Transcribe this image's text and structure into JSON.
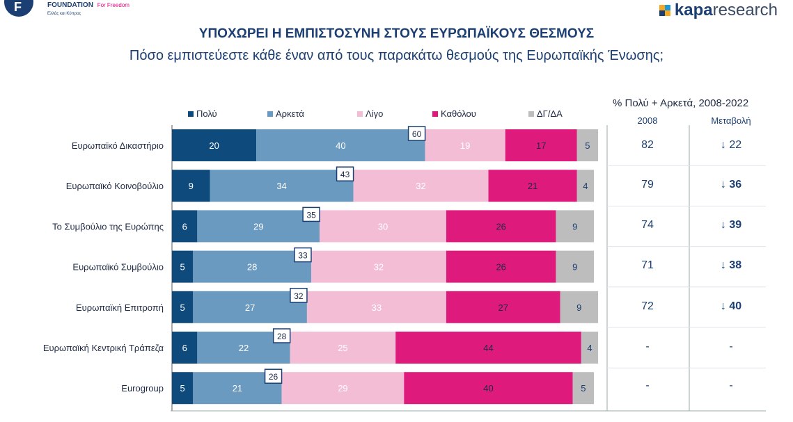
{
  "branding": {
    "left_logo_name": "FOUNDATION",
    "left_logo_tagline": "For Freedom",
    "left_logo_region": "Ελλάς και Κύπρος",
    "right_logo_bold": "kapa",
    "right_logo_rest": "research"
  },
  "header": {
    "title": "ΥΠΟΧΩΡΕΙ Η ΕΜΠΙΣΤΟΣΥΝΗ ΣΤΟΥΣ ΕΥΡΩΠΑΪΚΟΥΣ ΘΕΣΜΟΥΣ",
    "subtitle": "Πόσο εμπιστεύεστε κάθε έναν από τους παρακάτω θεσμούς της Ευρωπαϊκής Ένωσης;"
  },
  "legend": [
    {
      "label": "Πολύ",
      "color": "#0e4a7b"
    },
    {
      "label": "Αρκετά",
      "color": "#6b9ac0"
    },
    {
      "label": "Λίγο",
      "color": "#f4bdd6"
    },
    {
      "label": "Καθόλου",
      "color": "#df1a7d"
    },
    {
      "label": "ΔΓ/ΔΑ",
      "color": "#bdbdbd"
    }
  ],
  "side_table": {
    "title": "% Πολύ + Αρκετά, 2008-2022",
    "col_2008": "2008",
    "col_change": "Μεταβολή",
    "rows": [
      {
        "v2008": "82",
        "change": "↓ 22",
        "bold": false
      },
      {
        "v2008": "79",
        "change": "↓ 36",
        "bold": true
      },
      {
        "v2008": "74",
        "change": "↓ 39",
        "bold": true
      },
      {
        "v2008": "71",
        "change": "↓ 38",
        "bold": true
      },
      {
        "v2008": "72",
        "change": "↓ 40",
        "bold": true
      },
      {
        "v2008": "-",
        "change": "-",
        "bold": false
      },
      {
        "v2008": "-",
        "change": "-",
        "bold": false
      }
    ]
  },
  "chart_data": {
    "type": "bar",
    "orientation": "horizontal-stacked-100",
    "categories": [
      "Ευρωπαϊκό Δικαστήριο",
      "Ευρωπαϊκό Κοινοβούλιο",
      "Το Συμβούλιο της Ευρώπης",
      "Ευρωπαϊκό Συμβούλιο",
      "Ευρωπαϊκή Επιτροπή",
      "Ευρωπαϊκή Κεντρική Τράπεζα",
      "Eurogroup"
    ],
    "series": [
      {
        "name": "Πολύ",
        "color": "#0e4a7b",
        "label_color": "#ffffff",
        "values": [
          20,
          9,
          6,
          5,
          5,
          6,
          5
        ]
      },
      {
        "name": "Αρκετά",
        "color": "#6b9ac0",
        "label_color": "#ffffff",
        "values": [
          40,
          34,
          29,
          28,
          27,
          22,
          21
        ]
      },
      {
        "name": "Λίγο",
        "color": "#f4bdd6",
        "label_color": "#ffffff",
        "values": [
          19,
          32,
          30,
          32,
          33,
          25,
          29
        ]
      },
      {
        "name": "Καθόλου",
        "color": "#df1a7d",
        "label_color": "#1f2a44",
        "values": [
          17,
          21,
          26,
          26,
          27,
          44,
          40
        ]
      },
      {
        "name": "ΔΓ/ΔΑ",
        "color": "#bdbdbd",
        "label_color": "#1b3f73",
        "values": [
          5,
          4,
          9,
          9,
          9,
          4,
          5
        ]
      }
    ],
    "totals_label": [
      60,
      43,
      35,
      33,
      32,
      28,
      26
    ],
    "xlim": [
      0,
      100
    ],
    "legend_position": "top"
  }
}
